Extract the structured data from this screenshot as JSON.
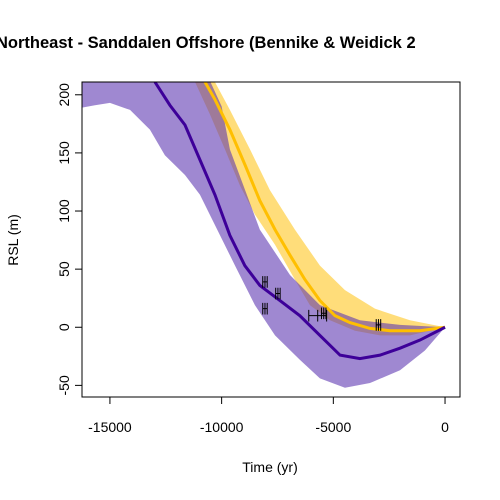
{
  "chart_data": {
    "type": "line",
    "title": "Northeast - Sanddalen Offshore (Bennike & Weidick 2",
    "x_label": "Time (yr)",
    "y_label": "RSL (m)",
    "xlim": [
      -16250,
      670
    ],
    "ylim": [
      -60,
      211
    ],
    "xticks": [
      -15000,
      -10000,
      -5000,
      0
    ],
    "yticks": [
      -50,
      0,
      50,
      100,
      150,
      200
    ],
    "bands": [
      {
        "color": "rgba(255,200,40,0.62)",
        "x": [
          -11190,
          -10520,
          -9850,
          -9180,
          -8510,
          -7610,
          -6720,
          -6050,
          -5150,
          -4030,
          -2910,
          -1570,
          0
        ],
        "lower": [
          211,
          183,
          153,
          122,
          97,
          71,
          41,
          19,
          6,
          -3,
          -7,
          -7,
          0
        ],
        "x_upper": [
          -10300,
          -9630,
          -8730,
          -7840,
          -6720,
          -5600,
          -4480,
          -3140,
          -1570,
          0
        ],
        "upper": [
          211,
          187,
          153,
          118,
          84,
          53,
          32,
          16,
          6,
          0
        ]
      },
      {
        "color": "rgba(90,50,175,0.58)",
        "x": [
          -16250,
          -15670,
          -15000,
          -14100,
          -13210,
          -12540,
          -11640,
          -10970,
          -10300,
          -9400,
          -8510,
          -7610,
          -6500,
          -5600,
          -4480,
          -3360,
          -2015,
          -900,
          0
        ],
        "lower": [
          189,
          191,
          193,
          187,
          170,
          148,
          131,
          114,
          88,
          53,
          19,
          -7,
          -28,
          -44,
          -52,
          -48,
          -37,
          -20,
          0
        ],
        "x_upper": [
          -16250,
          -10500,
          -10000,
          -9630,
          -8290,
          -6940,
          -5600,
          -3810,
          -2015,
          0
        ],
        "upper": [
          211,
          211,
          190,
          153,
          84,
          45,
          19,
          6,
          2,
          0
        ]
      }
    ],
    "series": [
      {
        "color": "#ffbf00",
        "x": [
          -10745,
          -10300,
          -9630,
          -8960,
          -8290,
          -7610,
          -6940,
          -6270,
          -5600,
          -4930,
          -4255,
          -3360,
          -2460,
          -1120,
          0
        ],
        "values": [
          211,
          196,
          170,
          140,
          109,
          84,
          62,
          41,
          23,
          10,
          4,
          -1,
          -3,
          -3,
          0
        ]
      },
      {
        "color": "#3d0099",
        "x": [
          -12985,
          -12315,
          -11640,
          -10970,
          -10300,
          -9630,
          -8960,
          -8290,
          -7390,
          -6500,
          -5600,
          -4700,
          -3810,
          -2910,
          -2015,
          -1120,
          0
        ],
        "values": [
          211,
          191,
          174,
          144,
          114,
          79,
          53,
          36,
          23,
          10,
          -7,
          -24,
          -27,
          -24,
          -18,
          -11,
          0
        ]
      }
    ],
    "points": {
      "x": [
        -8060,
        -7480,
        -8060,
        -5700,
        -5430,
        -2980
      ],
      "y": [
        39,
        29,
        16,
        10,
        12,
        2
      ],
      "xerr": [
        100,
        100,
        100,
        400,
        100,
        100
      ],
      "yerr": [
        5,
        5,
        5,
        5,
        5,
        5
      ]
    }
  }
}
